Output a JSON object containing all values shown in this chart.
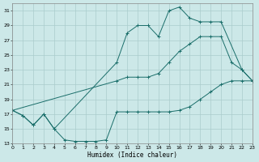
{
  "xlabel": "Humidex (Indice chaleur)",
  "bg_color": "#cce8e8",
  "line_color": "#1a6e6a",
  "grid_color": "#aacccc",
  "xlim": [
    0,
    23
  ],
  "ylim": [
    13,
    32
  ],
  "yticks": [
    13,
    15,
    17,
    19,
    21,
    23,
    25,
    27,
    29,
    31
  ],
  "xticks": [
    0,
    1,
    2,
    3,
    4,
    5,
    6,
    7,
    8,
    9,
    10,
    11,
    12,
    13,
    14,
    15,
    16,
    17,
    18,
    19,
    20,
    21,
    22,
    23
  ],
  "line1_x": [
    0,
    1,
    2,
    3,
    4,
    5,
    6,
    7,
    8,
    9,
    10,
    11,
    12,
    13,
    14,
    15,
    16,
    17,
    18,
    19,
    20,
    21,
    22,
    23
  ],
  "line1_y": [
    17.5,
    16.8,
    15.5,
    17.0,
    15.0,
    13.5,
    13.3,
    13.3,
    13.3,
    13.5,
    17.3,
    17.3,
    17.3,
    17.3,
    17.3,
    17.3,
    17.5,
    18.0,
    19.0,
    20.0,
    21.0,
    21.5,
    21.5,
    21.5
  ],
  "line2_x": [
    0,
    1,
    2,
    3,
    4,
    10,
    11,
    12,
    13,
    14,
    15,
    16,
    17,
    18,
    19,
    20,
    22,
    23
  ],
  "line2_y": [
    17.5,
    16.8,
    15.5,
    17.0,
    15.0,
    24.0,
    28.0,
    29.0,
    29.0,
    27.5,
    31.0,
    31.5,
    30.0,
    29.5,
    29.5,
    29.5,
    23.0,
    21.5
  ],
  "line3_x": [
    0,
    10,
    11,
    12,
    13,
    14,
    15,
    16,
    17,
    18,
    19,
    20,
    21,
    22,
    23
  ],
  "line3_y": [
    17.5,
    21.5,
    22.0,
    22.0,
    22.0,
    22.5,
    24.0,
    25.5,
    26.5,
    27.5,
    27.5,
    27.5,
    24.0,
    23.0,
    21.5
  ]
}
